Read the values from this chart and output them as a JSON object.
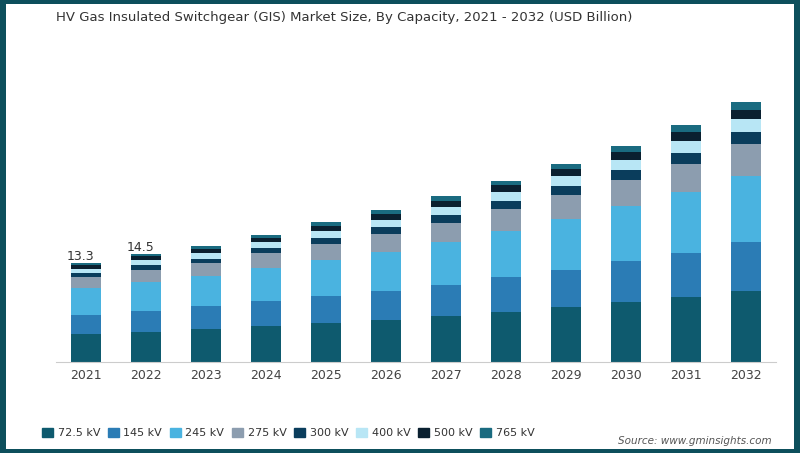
{
  "title": "HV Gas Insulated Switchgear (GIS) Market Size, By Capacity, 2021 - 2032 (USD Billion)",
  "years": [
    2021,
    2022,
    2023,
    2024,
    2025,
    2026,
    2027,
    2028,
    2029,
    2030,
    2031,
    2032
  ],
  "annotations": {
    "2021": "13.3",
    "2022": "14.5"
  },
  "segments": [
    {
      "label": "72.5 kV",
      "color": "#0e5a6e",
      "values": [
        3.8,
        4.1,
        4.5,
        4.9,
        5.3,
        5.7,
        6.2,
        6.8,
        7.4,
        8.1,
        8.8,
        9.6
      ]
    },
    {
      "label": "145 kV",
      "color": "#2b7cb5",
      "values": [
        2.6,
        2.8,
        3.0,
        3.3,
        3.6,
        3.9,
        4.2,
        4.6,
        5.0,
        5.4,
        5.9,
        6.5
      ]
    },
    {
      "label": "245 kV",
      "color": "#4ab3e0",
      "values": [
        3.5,
        3.8,
        4.0,
        4.4,
        4.8,
        5.2,
        5.7,
        6.2,
        6.8,
        7.4,
        8.1,
        8.9
      ]
    },
    {
      "label": "275 kV",
      "color": "#8c9daf",
      "values": [
        1.5,
        1.7,
        1.8,
        2.0,
        2.2,
        2.4,
        2.6,
        2.9,
        3.2,
        3.5,
        3.8,
        4.2
      ]
    },
    {
      "label": "300 kV",
      "color": "#0a3d5c",
      "values": [
        0.5,
        0.6,
        0.6,
        0.7,
        0.8,
        0.9,
        1.0,
        1.1,
        1.2,
        1.3,
        1.4,
        1.6
      ]
    },
    {
      "label": "400 kV",
      "color": "#b8e6f5",
      "values": [
        0.6,
        0.7,
        0.7,
        0.8,
        0.9,
        1.0,
        1.1,
        1.2,
        1.3,
        1.4,
        1.6,
        1.7
      ]
    },
    {
      "label": "500 kV",
      "color": "#0a2030",
      "values": [
        0.5,
        0.5,
        0.6,
        0.6,
        0.7,
        0.8,
        0.8,
        0.9,
        1.0,
        1.1,
        1.2,
        1.3
      ]
    },
    {
      "label": "765 kV",
      "color": "#1a6b80",
      "values": [
        0.3,
        0.3,
        0.4,
        0.4,
        0.5,
        0.5,
        0.6,
        0.6,
        0.7,
        0.8,
        0.9,
        1.0
      ]
    }
  ],
  "background_color": "#ffffff",
  "source_text": "Source: www.gminsights.com",
  "outer_bg": "#0d4f5c",
  "ylim_max": 40
}
